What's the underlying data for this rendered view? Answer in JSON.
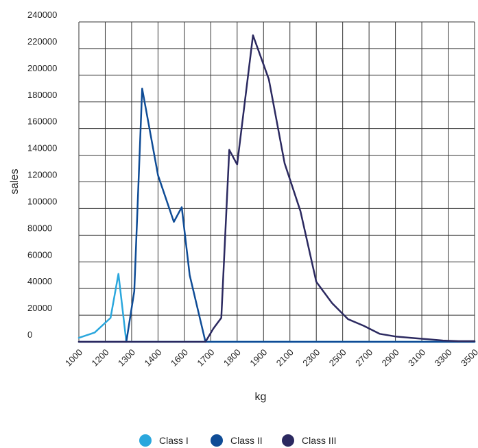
{
  "chart_data": {
    "type": "line",
    "xlabel": "kg",
    "ylabel": "sales",
    "x_tick_labels": [
      "1000",
      "1200",
      "1300",
      "1400",
      "1600",
      "1700",
      "1800",
      "1900",
      "2100",
      "2300",
      "2500",
      "2700",
      "2900",
      "3100",
      "3300",
      "3500"
    ],
    "y_tick_labels": [
      "0",
      "20000",
      "40000",
      "60000",
      "80000",
      "100000",
      "120000",
      "140000",
      "160000",
      "180000",
      "200000",
      "220000",
      "240000"
    ],
    "ylim": [
      0,
      240000
    ],
    "grid": true,
    "legend_position": "bottom-center",
    "series": [
      {
        "name": "Class I",
        "color": "#2aa7dd",
        "points": [
          {
            "x": "1000",
            "y": 3000
          },
          {
            "x": "1100",
            "y": 7000
          },
          {
            "x": "1200",
            "y": 18000
          },
          {
            "x": "1250",
            "y": 51000
          },
          {
            "x": "1300",
            "y": 0
          },
          {
            "x": "1400",
            "y": 0
          },
          {
            "x": "1600",
            "y": 0
          },
          {
            "x": "1700",
            "y": 0
          },
          {
            "x": "1800",
            "y": 0
          },
          {
            "x": "1900",
            "y": 0
          },
          {
            "x": "2100",
            "y": 0
          },
          {
            "x": "2300",
            "y": 0
          },
          {
            "x": "2500",
            "y": 0
          },
          {
            "x": "2700",
            "y": 0
          },
          {
            "x": "2900",
            "y": 0
          },
          {
            "x": "3100",
            "y": 0
          },
          {
            "x": "3300",
            "y": 0
          },
          {
            "x": "3500",
            "y": 0
          }
        ]
      },
      {
        "name": "Class II",
        "color": "#0f4c96",
        "points": [
          {
            "x": "1000",
            "y": 0
          },
          {
            "x": "1300",
            "y": 0
          },
          {
            "x": "1350",
            "y": 38000
          },
          {
            "x": "1400",
            "y": 190000
          },
          {
            "x": "1500",
            "y": 125000
          },
          {
            "x": "1600",
            "y": 90000
          },
          {
            "x": "1650",
            "y": 101000
          },
          {
            "x": "1700",
            "y": 50000
          },
          {
            "x": "1800",
            "y": 0
          },
          {
            "x": "1900",
            "y": 0
          },
          {
            "x": "2100",
            "y": 0
          },
          {
            "x": "2300",
            "y": 0
          },
          {
            "x": "2500",
            "y": 0
          },
          {
            "x": "2700",
            "y": 0
          },
          {
            "x": "2900",
            "y": 0
          },
          {
            "x": "3100",
            "y": 0
          },
          {
            "x": "3300",
            "y": 0
          },
          {
            "x": "3500",
            "y": 0
          }
        ]
      },
      {
        "name": "Class III",
        "color": "#2b2960",
        "points": [
          {
            "x": "1000",
            "y": 0
          },
          {
            "x": "1800",
            "y": 0
          },
          {
            "x": "1850",
            "y": 10000
          },
          {
            "x": "1900",
            "y": 18000
          },
          {
            "x": "1950",
            "y": 144000
          },
          {
            "x": "2000",
            "y": 133000
          },
          {
            "x": "2100",
            "y": 230000
          },
          {
            "x": "2200",
            "y": 197000
          },
          {
            "x": "2300",
            "y": 134000
          },
          {
            "x": "2400",
            "y": 98000
          },
          {
            "x": "2500",
            "y": 45000
          },
          {
            "x": "2600",
            "y": 29000
          },
          {
            "x": "2700",
            "y": 17000
          },
          {
            "x": "2800",
            "y": 12000
          },
          {
            "x": "2900",
            "y": 6000
          },
          {
            "x": "3000",
            "y": 4000
          },
          {
            "x": "3100",
            "y": 3000
          },
          {
            "x": "3200",
            "y": 2000
          },
          {
            "x": "3300",
            "y": 1000
          },
          {
            "x": "3400",
            "y": 500
          },
          {
            "x": "3500",
            "y": 500
          }
        ]
      }
    ]
  }
}
